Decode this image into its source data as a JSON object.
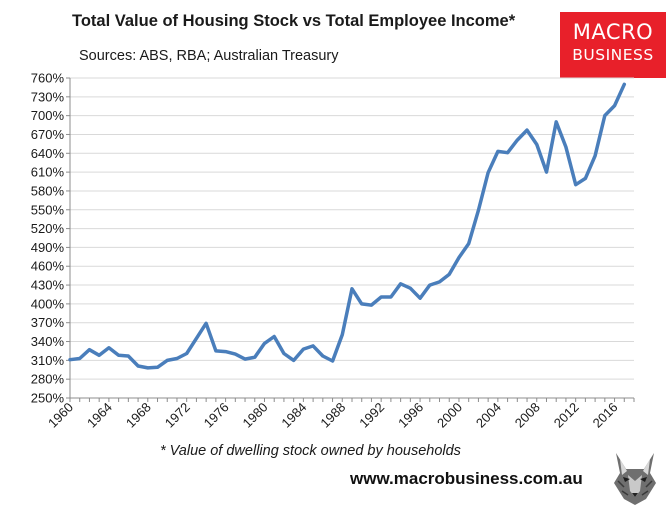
{
  "chart_data": {
    "type": "line",
    "title": "Total Value of Housing Stock vs Total Employee Income*",
    "subtitle": "Sources: ABS, RBA; Australian Treasury",
    "footnote": "* Value of dwelling stock owned by households",
    "xlabel": "",
    "ylabel": "",
    "xlim": [
      1960,
      2018
    ],
    "ylim": [
      250,
      760
    ],
    "y_ticks": [
      250,
      280,
      310,
      340,
      370,
      400,
      430,
      460,
      490,
      520,
      550,
      580,
      610,
      640,
      670,
      700,
      730,
      760
    ],
    "y_tick_labels": [
      "250%",
      "280%",
      "310%",
      "340%",
      "370%",
      "400%",
      "430%",
      "460%",
      "490%",
      "520%",
      "550%",
      "580%",
      "610%",
      "640%",
      "670%",
      "700%",
      "730%",
      "760%"
    ],
    "x_tick_labels": [
      "1960",
      "1964",
      "1968",
      "1972",
      "1976",
      "1980",
      "1984",
      "1988",
      "1992",
      "1996",
      "2000",
      "2004",
      "2008",
      "2012",
      "2016"
    ],
    "x_tick_values": [
      1960,
      1964,
      1968,
      1972,
      1976,
      1980,
      1984,
      1988,
      1992,
      1996,
      2000,
      2004,
      2008,
      2012,
      2016
    ],
    "grid": "horizontal",
    "series": [
      {
        "name": "Housing stock to employee income",
        "color": "#4a7ebb",
        "x": [
          1960,
          1961,
          1962,
          1963,
          1964,
          1965,
          1966,
          1967,
          1968,
          1969,
          1970,
          1971,
          1972,
          1973,
          1974,
          1975,
          1976,
          1977,
          1978,
          1979,
          1980,
          1981,
          1982,
          1983,
          1984,
          1985,
          1986,
          1987,
          1988,
          1989,
          1990,
          1991,
          1992,
          1993,
          1994,
          1995,
          1996,
          1997,
          1998,
          1999,
          2000,
          2001,
          2002,
          2003,
          2004,
          2005,
          2006,
          2007,
          2008,
          2009,
          2010,
          2011,
          2012,
          2013,
          2014,
          2015,
          2016,
          2017
        ],
        "values": [
          311,
          313,
          327,
          318,
          330,
          318,
          317,
          301,
          298,
          299,
          310,
          313,
          321,
          345,
          369,
          325,
          324,
          320,
          312,
          315,
          337,
          348,
          321,
          310,
          328,
          333,
          317,
          309,
          351,
          424,
          400,
          398,
          411,
          411,
          432,
          425,
          409,
          430,
          435,
          447,
          474,
          496,
          549,
          609,
          643,
          641,
          661,
          677,
          654,
          610,
          690,
          650,
          590,
          600,
          636,
          700,
          716,
          750
        ]
      }
    ]
  },
  "logo": {
    "line1": "MACRO",
    "line2": "BUSINESS",
    "color": "#e8202a"
  },
  "website": "www.macrobusiness.com.au",
  "wolf_icon": "wolf-head-logo"
}
